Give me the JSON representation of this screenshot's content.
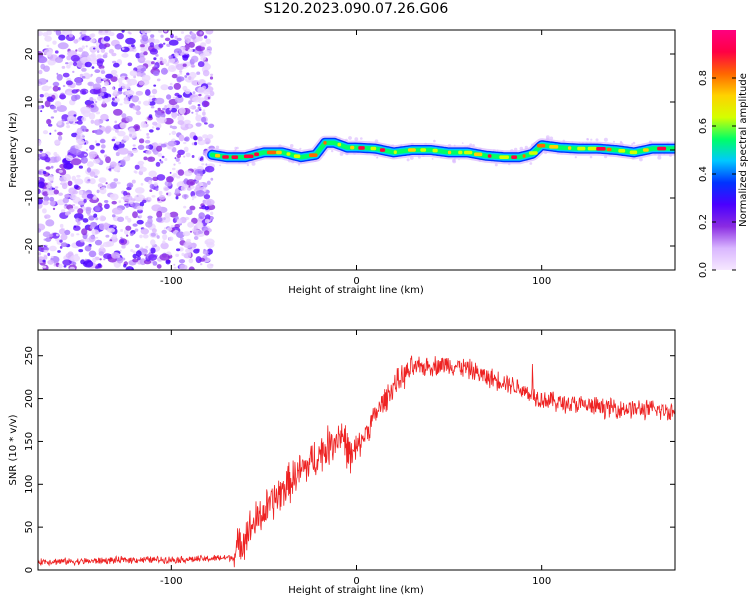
{
  "title": "S120.2023.090.07.26.G06",
  "colors": {
    "snr_line": "#ee2222",
    "colormap": [
      "#f6e8ff",
      "#d9b6ff",
      "#8a2be2",
      "#4a00ff",
      "#0033ff",
      "#00c8ff",
      "#00ff66",
      "#d4ff00",
      "#ffd200",
      "#ff6600",
      "#ff0044",
      "#ff007f"
    ]
  },
  "chart_data": [
    {
      "type": "heatmap",
      "xlabel": "Height of straight line (km)",
      "ylabel": "Frequency (Hz)",
      "xlim": [
        -172,
        172
      ],
      "ylim": [
        -25,
        25
      ],
      "xticks": [
        -100,
        0,
        100
      ],
      "yticks": [
        -20,
        -10,
        0,
        10,
        20
      ],
      "grid": false,
      "colorbar": {
        "label": "Normalized spectral amplitude",
        "range": [
          0,
          1
        ],
        "ticks": [
          0.0,
          0.2,
          0.4,
          0.6,
          0.8
        ]
      },
      "noise_region_x": [
        -172,
        -78
      ],
      "ridge": {
        "x": [
          -78,
          -70,
          -60,
          -50,
          -40,
          -30,
          -22,
          -17,
          -12,
          -5,
          0,
          10,
          20,
          30,
          40,
          50,
          60,
          70,
          80,
          88,
          95,
          100,
          110,
          120,
          130,
          140,
          150,
          160,
          172
        ],
        "y": [
          -1.0,
          -1.5,
          -1.5,
          -0.5,
          -0.5,
          -1.5,
          -1.0,
          1.5,
          1.5,
          0.5,
          0.5,
          0.3,
          -0.5,
          0.0,
          0.0,
          -0.5,
          -0.5,
          -1.2,
          -1.5,
          -1.5,
          -0.8,
          1.0,
          0.5,
          0.3,
          0.3,
          0.0,
          -0.5,
          0.3,
          0.3
        ]
      }
    },
    {
      "type": "line",
      "xlabel": "Height of straight line (km)",
      "ylabel": "SNR (10 * v/v)",
      "xlim": [
        -172,
        172
      ],
      "ylim": [
        0,
        280
      ],
      "xticks": [
        -100,
        0,
        100
      ],
      "yticks": [
        0,
        50,
        100,
        150,
        200,
        250
      ],
      "grid": false,
      "series": [
        {
          "x": [
            -172,
            -150,
            -120,
            -100,
            -80,
            -66,
            -62,
            -55,
            -45,
            -35,
            -25,
            -15,
            -8,
            -3,
            0,
            10,
            20,
            30,
            40,
            50,
            60,
            70,
            80,
            90,
            100,
            110,
            130,
            150,
            172
          ],
          "y": [
            10,
            10,
            12,
            12,
            13,
            15,
            35,
            55,
            80,
            105,
            125,
            145,
            160,
            130,
            140,
            180,
            215,
            235,
            238,
            240,
            235,
            225,
            220,
            210,
            200,
            195,
            190,
            188,
            185
          ]
        }
      ]
    }
  ]
}
